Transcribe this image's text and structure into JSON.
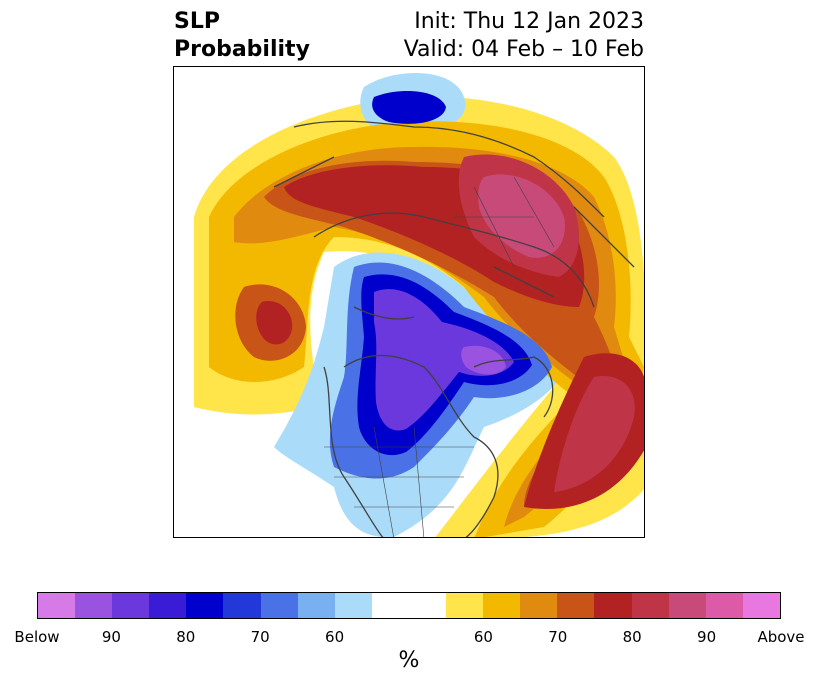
{
  "title": {
    "line1": "SLP",
    "line2": "Probability"
  },
  "init_text": "Init: Thu 12 Jan 2023",
  "valid_text": "Valid: 04 Feb – 10 Feb",
  "colorbar": {
    "colors": [
      "#d67ae8",
      "#9a52e0",
      "#6a38dc",
      "#3a1cd6",
      "#0000cc",
      "#2238d8",
      "#4a72e6",
      "#78b0f2",
      "#aadcfa",
      "#ffffff",
      "#ffe44a",
      "#f3b800",
      "#e08a10",
      "#c85418",
      "#b22222",
      "#c03448",
      "#c84a78",
      "#dc5aa8",
      "#e878e0"
    ],
    "tick_labels": [
      "Below",
      "90",
      "80",
      "70",
      "60",
      "60",
      "70",
      "80",
      "90",
      "Above"
    ],
    "unit": "%"
  },
  "map": {
    "projection": "polar stereographic (north pole)",
    "colors": {
      "below_90": "#9a52e0",
      "below_80": "#6a38dc",
      "below_70": "#0000cc",
      "below_60": "#4a72e6",
      "below_50": "#aadcfa",
      "above_50": "#ffe44a",
      "above_60": "#f3b800",
      "above_70": "#c85418",
      "above_80": "#b22222",
      "above_90": "#c03448",
      "above_95": "#c84a78",
      "coast": "#404040"
    }
  }
}
